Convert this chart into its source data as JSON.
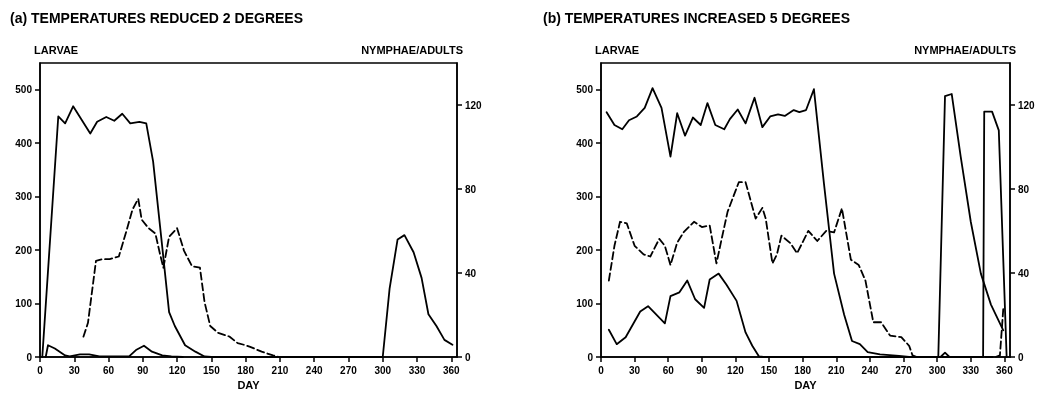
{
  "chart_data": [
    {
      "type": "line",
      "title": "(a) TEMPERATURES REDUCED 2 DEGREES",
      "xlabel": "DAY",
      "ylabel": "LARVAE",
      "y2label": "NYMPHAE/ADULTS",
      "xlim": [
        0,
        365
      ],
      "xticks": [
        0,
        30,
        60,
        90,
        120,
        150,
        180,
        210,
        240,
        270,
        300,
        330,
        360
      ],
      "ylim": [
        0,
        550
      ],
      "yticks": [
        0,
        100,
        200,
        300,
        400,
        500
      ],
      "y2lim": [
        0,
        140
      ],
      "y2ticks": [
        0,
        40,
        80,
        120
      ],
      "grid": false,
      "marker": "none",
      "series": [
        {
          "color": "#000000",
          "line_style": "solid",
          "x": [
            2,
            16,
            22,
            29,
            44,
            50,
            58,
            65,
            72,
            79,
            87,
            93,
            99,
            107,
            113,
            118,
            127,
            136,
            144,
            150,
            300,
            306,
            313,
            319,
            327,
            334,
            340,
            347,
            354,
            361
          ],
          "values": [
            0,
            450,
            437,
            469,
            418,
            440,
            449,
            442,
            455,
            437,
            440,
            437,
            366,
            206,
            84,
            58,
            22,
            10,
            1,
            0,
            0,
            128,
            220,
            228,
            196,
            148,
            80,
            58,
            32,
            23
          ]
        },
        {
          "color": "#000000",
          "line_style": "solid",
          "x": [
            5,
            7,
            13,
            22,
            26,
            35,
            43,
            52,
            78,
            84,
            91,
            98,
            107,
            115,
            125
          ],
          "values": [
            0,
            22,
            16,
            3,
            1,
            5,
            5,
            1,
            1,
            13,
            21,
            10,
            3,
            1,
            0
          ]
        },
        {
          "color": "#000000",
          "line_style": "dashed",
          "x": [
            38,
            42,
            49,
            55,
            61,
            69,
            75,
            81,
            86,
            89,
            95,
            101,
            105,
            108,
            113,
            120,
            126,
            133,
            140,
            144,
            149,
            156,
            166,
            173,
            180,
            184,
            194,
            204,
            209
          ],
          "values": [
            38,
            64,
            180,
            183,
            183,
            188,
            231,
            276,
            296,
            257,
            241,
            231,
            193,
            167,
            225,
            241,
            199,
            170,
            167,
            103,
            58,
            45,
            38,
            26,
            22,
            19,
            10,
            3,
            0
          ]
        }
      ]
    },
    {
      "type": "line",
      "title": "(b) TEMPERATURES INCREASED 5 DEGREES",
      "xlabel": "DAY",
      "ylabel": "LARVAE",
      "y2label": "NYMPHAE/ADULTS",
      "xlim": [
        0,
        365
      ],
      "xticks": [
        0,
        30,
        60,
        90,
        120,
        150,
        180,
        210,
        240,
        270,
        300,
        330,
        360
      ],
      "ylim": [
        0,
        550
      ],
      "yticks": [
        0,
        100,
        200,
        300,
        400,
        500
      ],
      "y2lim": [
        0,
        140
      ],
      "y2ticks": [
        0,
        40,
        80,
        120
      ],
      "grid": false,
      "marker": "none",
      "series": [
        {
          "color": "#000000",
          "line_style": "solid",
          "x": [
            5,
            12,
            19,
            25,
            32,
            39,
            46,
            54,
            62,
            68,
            75,
            82,
            89,
            95,
            102,
            110,
            115,
            122,
            129,
            137,
            144,
            151,
            158,
            164,
            172,
            177,
            183,
            190,
            199,
            208,
            217,
            224,
            231,
            238,
            249,
            266,
            275,
            303,
            307,
            311,
            341,
            342,
            349,
            355,
            362
          ],
          "values": [
            458,
            434,
            426,
            443,
            450,
            466,
            503,
            466,
            375,
            456,
            414,
            448,
            434,
            475,
            434,
            426,
            445,
            463,
            437,
            485,
            430,
            450,
            454,
            451,
            462,
            458,
            462,
            501,
            324,
            156,
            79,
            30,
            24,
            9,
            5,
            2,
            0,
            0,
            8,
            0,
            0,
            459,
            459,
            424,
            0
          ]
        },
        {
          "color": "#000000",
          "line_style": "solid",
          "x": [
            7,
            14,
            22,
            35,
            42,
            57,
            62,
            70,
            77,
            84,
            92,
            97,
            105,
            112,
            121,
            129,
            135,
            141,
            145,
            301,
            307,
            313,
            321,
            330,
            339,
            348,
            359
          ],
          "values": [
            51,
            24,
            37,
            85,
            95,
            63,
            114,
            121,
            143,
            108,
            92,
            145,
            156,
            135,
            105,
            46,
            21,
            1,
            0,
            0,
            488,
            492,
            375,
            253,
            156,
            98,
            50
          ]
        },
        {
          "color": "#000000",
          "line_style": "dashed",
          "x": [
            7,
            12,
            17,
            23,
            30,
            38,
            44,
            52,
            57,
            62,
            68,
            74,
            83,
            90,
            97,
            103,
            108,
            113,
            123,
            129,
            138,
            144,
            147,
            153,
            157,
            161,
            169,
            175,
            185,
            193,
            201,
            208,
            215,
            223,
            230,
            236,
            243,
            250,
            258,
            268,
            275,
            278,
            282,
            352,
            356,
            359
          ],
          "values": [
            143,
            208,
            253,
            250,
            208,
            192,
            188,
            221,
            208,
            172,
            214,
            234,
            253,
            243,
            246,
            175,
            224,
            272,
            327,
            327,
            259,
            279,
            259,
            175,
            192,
            227,
            213,
            194,
            236,
            217,
            236,
            233,
            278,
            182,
            172,
            143,
            65,
            65,
            40,
            37,
            21,
            3,
            0,
            0,
            3,
            90
          ]
        }
      ]
    }
  ]
}
